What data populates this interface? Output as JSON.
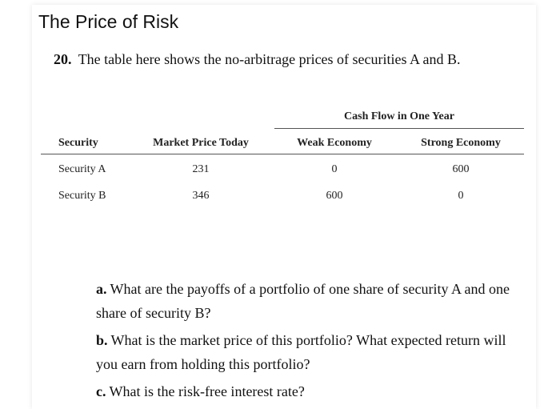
{
  "heading": "The Price of Risk",
  "question": {
    "number": "20.",
    "text": "The table here shows the no-arbitrage prices of securities A and B."
  },
  "table": {
    "group_header": "Cash Flow in One Year",
    "columns": [
      "Security",
      "Market Price Today",
      "Weak Economy",
      "Strong Economy"
    ],
    "rows": [
      [
        "Security A",
        "231",
        "0",
        "600"
      ],
      [
        "Security B",
        "346",
        "600",
        "0"
      ]
    ]
  },
  "parts": [
    {
      "label": "a.",
      "text": "What are the payoffs of a portfolio of one share of security A and one share of security B?"
    },
    {
      "label": "b.",
      "text": "What is the market price of this portfolio? What expected return will you earn from holding this portfolio?"
    },
    {
      "label": "c.",
      "text": "What is the risk-free interest rate?"
    }
  ]
}
